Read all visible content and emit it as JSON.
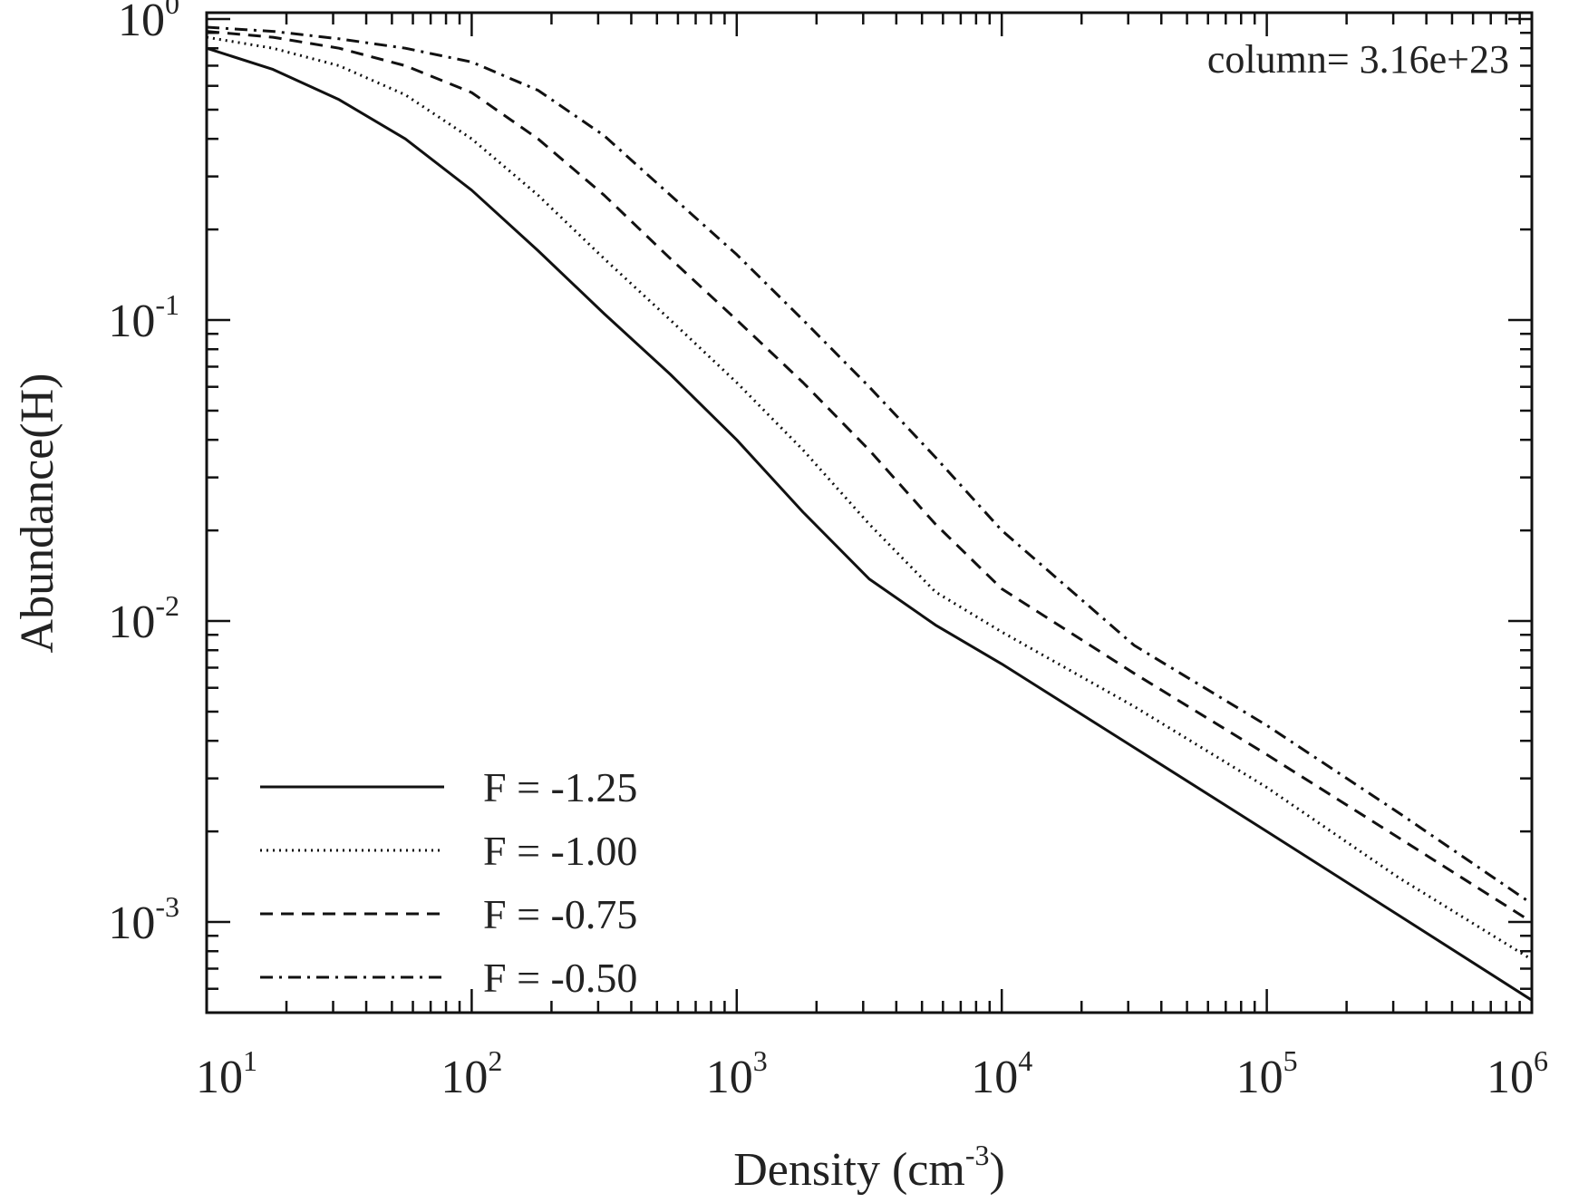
{
  "chart_data": {
    "type": "line",
    "xscale": "log",
    "yscale": "log",
    "xlim": [
      10,
      1000000
    ],
    "ylim": [
      0.0005,
      1.05
    ],
    "xlabel": {
      "text": "Density (cm",
      "sup": "-3",
      "close": ")"
    },
    "ylabel": "Abundance(H)",
    "annotation": "column= 3.16e+23",
    "legend_position": "bottom-left",
    "x_ticks": [
      {
        "base": "10",
        "exp": "1",
        "value": 10
      },
      {
        "base": "10",
        "exp": "2",
        "value": 100
      },
      {
        "base": "10",
        "exp": "3",
        "value": 1000
      },
      {
        "base": "10",
        "exp": "4",
        "value": 10000
      },
      {
        "base": "10",
        "exp": "5",
        "value": 100000
      },
      {
        "base": "10",
        "exp": "6",
        "value": 1000000
      }
    ],
    "y_ticks": [
      {
        "base": "10",
        "exp": "0",
        "value": 1
      },
      {
        "base": "10",
        "exp": "-1",
        "value": 0.1
      },
      {
        "base": "10",
        "exp": "-2",
        "value": 0.01
      },
      {
        "base": "10",
        "exp": "-3",
        "value": 0.001
      }
    ],
    "series": [
      {
        "name": "F = -1.25",
        "style": "solid",
        "x": [
          10,
          17.8,
          31.6,
          56.2,
          100,
          178,
          316,
          562,
          1000,
          1780,
          3160,
          5620,
          10000,
          31600,
          100000,
          316000,
          1000000
        ],
        "y": [
          0.8,
          0.68,
          0.54,
          0.4,
          0.27,
          0.17,
          0.105,
          0.066,
          0.04,
          0.023,
          0.0138,
          0.0097,
          0.0072,
          0.0038,
          0.002,
          0.00105,
          0.00055
        ]
      },
      {
        "name": "F = -1.00",
        "style": "dotted",
        "x": [
          10,
          17.8,
          31.6,
          56.2,
          100,
          178,
          316,
          562,
          1000,
          1780,
          3160,
          5620,
          10000,
          31600,
          100000,
          316000,
          1000000
        ],
        "y": [
          0.87,
          0.8,
          0.7,
          0.56,
          0.4,
          0.26,
          0.16,
          0.1,
          0.062,
          0.037,
          0.021,
          0.0125,
          0.0092,
          0.0052,
          0.0028,
          0.0014,
          0.00075
        ]
      },
      {
        "name": "F = -0.75",
        "style": "dashed",
        "x": [
          10,
          17.8,
          31.6,
          56.2,
          100,
          178,
          316,
          562,
          1000,
          1780,
          3160,
          5620,
          10000,
          31600,
          100000,
          316000,
          1000000
        ],
        "y": [
          0.91,
          0.87,
          0.8,
          0.7,
          0.57,
          0.4,
          0.26,
          0.16,
          0.1,
          0.062,
          0.037,
          0.021,
          0.0128,
          0.0067,
          0.0036,
          0.0019,
          0.001
        ]
      },
      {
        "name": "F = -0.50",
        "style": "dashdot",
        "x": [
          10,
          17.8,
          31.6,
          56.2,
          100,
          178,
          316,
          562,
          1000,
          1780,
          3160,
          5620,
          10000,
          31600,
          100000,
          316000,
          1000000
        ],
        "y": [
          0.94,
          0.91,
          0.86,
          0.8,
          0.72,
          0.58,
          0.41,
          0.26,
          0.165,
          0.1,
          0.06,
          0.035,
          0.02,
          0.0083,
          0.0045,
          0.0023,
          0.00115
        ]
      }
    ]
  }
}
